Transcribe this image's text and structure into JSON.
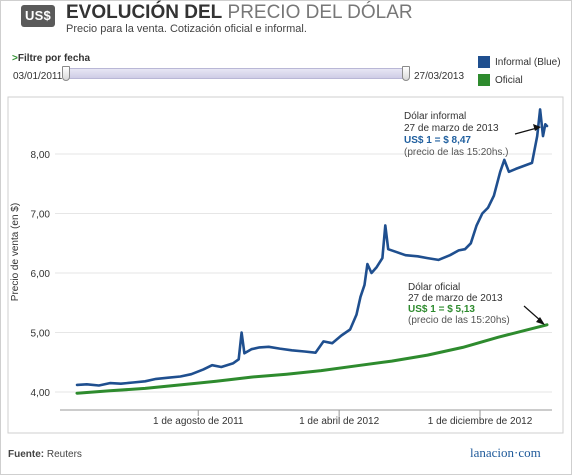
{
  "header": {
    "badge": "US$",
    "title_bold": "EVOLUCIÓN DEL",
    "title_light": "PRECIO DEL DÓLAR",
    "subtitle": "Precio para la venta. Cotización oficial e informal."
  },
  "filter": {
    "arrow": ">",
    "label": "Filtre por fecha",
    "start_date": "03/01/2011",
    "end_date": "27/03/2013"
  },
  "legend": [
    {
      "label": "Informal (Blue)",
      "color": "#1f4f8f"
    },
    {
      "label": "Oficial",
      "color": "#2e8b2e"
    }
  ],
  "annotations": {
    "informal": {
      "line1": "Dólar informal",
      "line2": "27 de marzo de 2013",
      "line3": "US$ 1 = $ 8,47",
      "line4": "(precio de las 15:20hs.)"
    },
    "oficial": {
      "line1": "Dólar oficial",
      "line2": "27 de marzo de 2013",
      "line3": "US$ 1 = $ 5,13",
      "line4": "(precio de las 15:20hs)"
    }
  },
  "footer": {
    "source_label": "Fuente:",
    "source_value": "Reuters",
    "logo": "lanacion·com"
  },
  "chart_data": {
    "type": "line",
    "xlabel": "",
    "ylabel": "Precio de venta (en $)",
    "ylim": [
      3.8,
      8.9
    ],
    "xlim": [
      "2011-01-03",
      "2013-03-27"
    ],
    "yticks": [
      4.0,
      5.0,
      6.0,
      7.0,
      8.0
    ],
    "ytick_labels": [
      "4,00",
      "5,00",
      "6,00",
      "7,00",
      "8,00"
    ],
    "xticks": [
      "2011-08-01",
      "2012-04-01",
      "2012-12-01"
    ],
    "xtick_labels": [
      "1 de agosto de 2011",
      "1 de abril de 2012",
      "1 de diciembre de 2012"
    ],
    "grid": "horizontal",
    "series": [
      {
        "name": "Informal (Blue)",
        "color": "#1f4f8f",
        "points": [
          [
            "2011-01-03",
            4.12
          ],
          [
            "2011-01-20",
            4.13
          ],
          [
            "2011-02-10",
            4.11
          ],
          [
            "2011-03-01",
            4.15
          ],
          [
            "2011-03-20",
            4.14
          ],
          [
            "2011-04-10",
            4.16
          ],
          [
            "2011-05-01",
            4.18
          ],
          [
            "2011-05-20",
            4.22
          ],
          [
            "2011-06-10",
            4.24
          ],
          [
            "2011-07-01",
            4.26
          ],
          [
            "2011-07-20",
            4.3
          ],
          [
            "2011-08-10",
            4.38
          ],
          [
            "2011-08-25",
            4.45
          ],
          [
            "2011-09-10",
            4.42
          ],
          [
            "2011-09-30",
            4.48
          ],
          [
            "2011-10-10",
            4.55
          ],
          [
            "2011-10-15",
            5.0
          ],
          [
            "2011-10-20",
            4.65
          ],
          [
            "2011-11-01",
            4.72
          ],
          [
            "2011-11-15",
            4.75
          ],
          [
            "2011-12-01",
            4.76
          ],
          [
            "2011-12-20",
            4.73
          ],
          [
            "2012-01-10",
            4.7
          ],
          [
            "2012-02-01",
            4.68
          ],
          [
            "2012-02-20",
            4.66
          ],
          [
            "2012-03-05",
            4.85
          ],
          [
            "2012-03-20",
            4.82
          ],
          [
            "2012-04-05",
            4.95
          ],
          [
            "2012-04-20",
            5.05
          ],
          [
            "2012-05-01",
            5.3
          ],
          [
            "2012-05-08",
            5.6
          ],
          [
            "2012-05-15",
            5.8
          ],
          [
            "2012-05-20",
            6.15
          ],
          [
            "2012-05-27",
            6.0
          ],
          [
            "2012-06-05",
            6.1
          ],
          [
            "2012-06-15",
            6.25
          ],
          [
            "2012-06-20",
            6.8
          ],
          [
            "2012-06-25",
            6.4
          ],
          [
            "2012-07-10",
            6.35
          ],
          [
            "2012-07-25",
            6.3
          ],
          [
            "2012-08-15",
            6.28
          ],
          [
            "2012-09-01",
            6.25
          ],
          [
            "2012-09-20",
            6.22
          ],
          [
            "2012-10-10",
            6.3
          ],
          [
            "2012-10-25",
            6.38
          ],
          [
            "2012-11-05",
            6.4
          ],
          [
            "2012-11-15",
            6.5
          ],
          [
            "2012-11-25",
            6.8
          ],
          [
            "2012-12-05",
            7.0
          ],
          [
            "2012-12-15",
            7.1
          ],
          [
            "2012-12-25",
            7.3
          ],
          [
            "2013-01-05",
            7.7
          ],
          [
            "2013-01-12",
            7.9
          ],
          [
            "2013-01-20",
            7.7
          ],
          [
            "2013-02-01",
            7.75
          ],
          [
            "2013-02-15",
            7.8
          ],
          [
            "2013-03-01",
            7.85
          ],
          [
            "2013-03-10",
            8.3
          ],
          [
            "2013-03-15",
            8.75
          ],
          [
            "2013-03-20",
            8.3
          ],
          [
            "2013-03-24",
            8.5
          ],
          [
            "2013-03-27",
            8.47
          ]
        ]
      },
      {
        "name": "Oficial",
        "color": "#2e8b2e",
        "points": [
          [
            "2011-01-03",
            3.98
          ],
          [
            "2011-03-01",
            4.02
          ],
          [
            "2011-05-01",
            4.06
          ],
          [
            "2011-07-01",
            4.12
          ],
          [
            "2011-09-01",
            4.18
          ],
          [
            "2011-11-01",
            4.25
          ],
          [
            "2012-01-01",
            4.3
          ],
          [
            "2012-03-01",
            4.36
          ],
          [
            "2012-05-01",
            4.44
          ],
          [
            "2012-07-01",
            4.52
          ],
          [
            "2012-09-01",
            4.62
          ],
          [
            "2012-11-01",
            4.75
          ],
          [
            "2013-01-01",
            4.92
          ],
          [
            "2013-02-15",
            5.03
          ],
          [
            "2013-03-27",
            5.13
          ]
        ]
      }
    ]
  }
}
